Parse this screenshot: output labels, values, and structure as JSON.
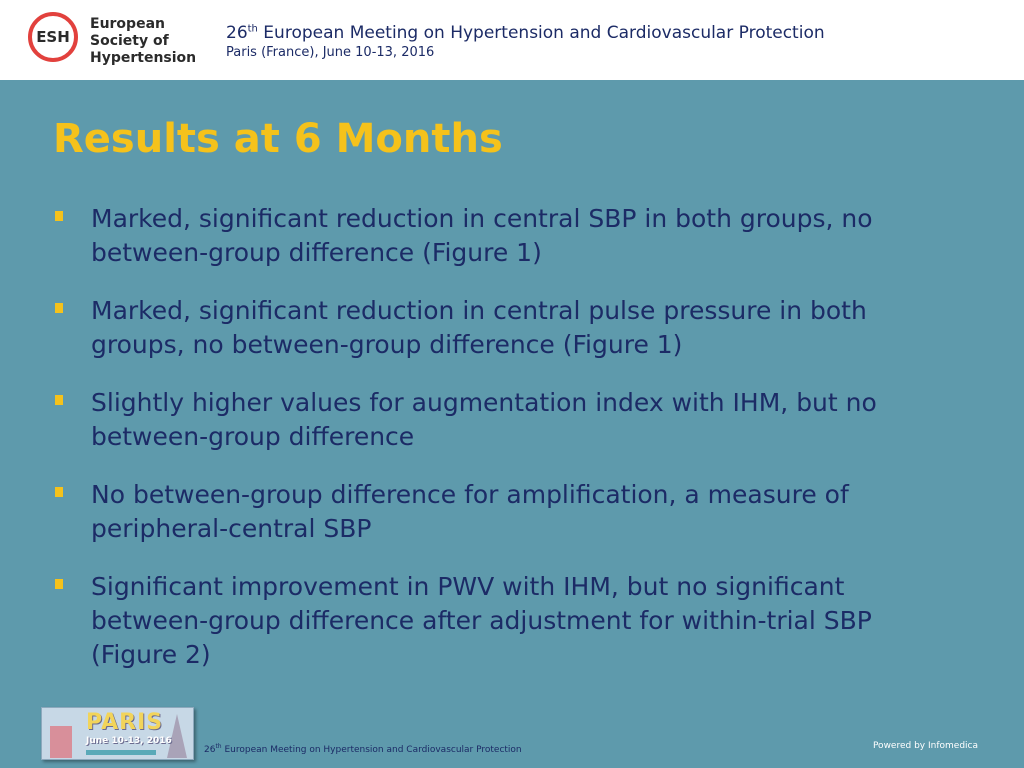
{
  "header": {
    "logo": {
      "abbr": "ESH",
      "lines": [
        "European",
        "Society of",
        "Hypertension"
      ]
    },
    "meeting_number": "26",
    "meeting_number_suffix": "th",
    "meeting_title_rest": " European Meeting on Hypertension and Cardiovascular Protection",
    "meeting_subtitle": "Paris (France), June 10-13, 2016"
  },
  "slide": {
    "title": "Results at 6 Months",
    "bullets": [
      "Marked, significant reduction in central SBP in both groups, no between-group difference (Figure 1)",
      "Marked, significant reduction in central pulse pressure in both groups, no between-group difference (Figure 1)",
      "Slightly higher values for augmentation index with IHM, but no between-group difference",
      "No between-group difference for amplification, a measure of peripheral-central SBP",
      "Significant improvement in PWV with IHM, but no significant between-group difference after adjustment for within-trial SBP (Figure 2)"
    ]
  },
  "footer": {
    "thumb_word": "PARIS",
    "thumb_date": "June 10-13, 2016",
    "meeting_number": "26",
    "meeting_number_suffix": "th",
    "meeting_title_rest": " European Meeting on Hypertension and Cardiovascular Protection",
    "powered_by": "Powered by Infomedica"
  },
  "colors": {
    "background": "#5e9aac",
    "title": "#f5c21b",
    "body_text": "#1c2b66",
    "logo_ring": "#e2413d"
  }
}
